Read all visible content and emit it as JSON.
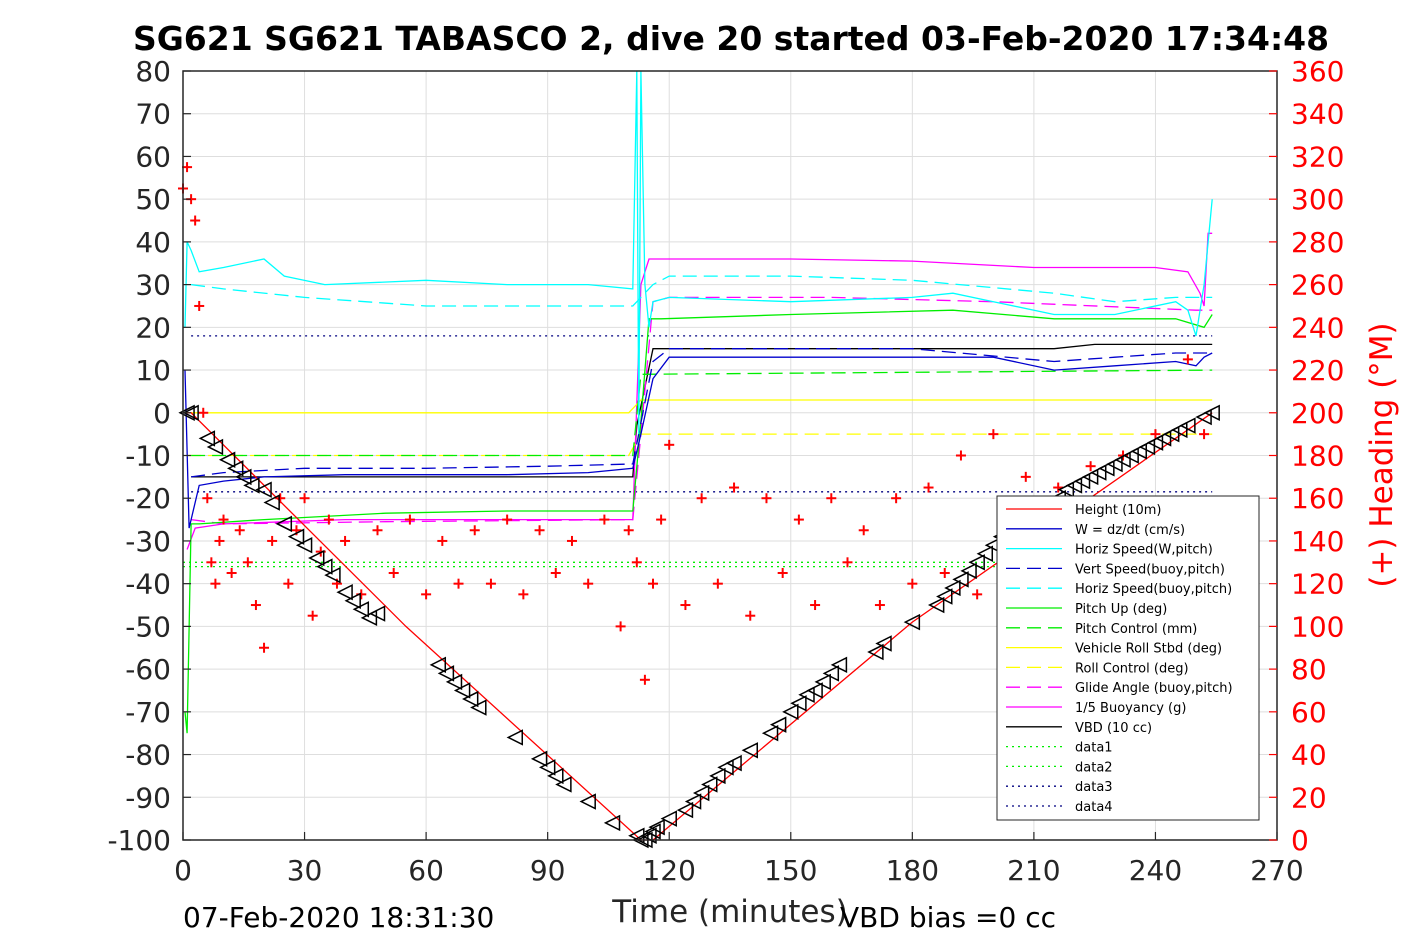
{
  "chart_data": {
    "type": "line",
    "title": "SG621 SG621 TABASCO 2, dive 20 started 03-Feb-2020 17:34:48",
    "xlabel": "Time (minutes)",
    "ylabel": "",
    "y2label": "(+) Heading (°M)",
    "xlim": [
      0,
      270
    ],
    "ylim": [
      -100,
      80
    ],
    "y2lim": [
      0,
      360
    ],
    "xticks": [
      "0",
      "30",
      "60",
      "90",
      "120",
      "150",
      "180",
      "210",
      "240",
      "270"
    ],
    "yticks": [
      "80",
      "70",
      "60",
      "50",
      "40",
      "30",
      "20",
      "10",
      "0",
      "-10",
      "-20",
      "-30",
      "-40",
      "-50",
      "-60",
      "-70",
      "-80",
      "-90",
      "-100"
    ],
    "y2ticks": [
      "360",
      "340",
      "320",
      "300",
      "280",
      "260",
      "240",
      "220",
      "200",
      "180",
      "160",
      "140",
      "120",
      "100",
      "80",
      "60",
      "40",
      "20",
      "0"
    ],
    "grid": true,
    "legend_position": "lower-right",
    "footer_left": "07-Feb-2020 18:31:30",
    "footer_right": "VBD bias =0 cc",
    "colors": {
      "height": "#ff0000",
      "w": "#0000cd",
      "cyan": "#00ffff",
      "green": "#00ee00",
      "yellow": "#ffff00",
      "magenta": "#ff00ff",
      "black": "#000000",
      "heading": "#ff0000"
    },
    "series": [
      {
        "name": "Height (10m)",
        "style": "solid",
        "color": "#ff0000",
        "x": [
          0,
          2,
          55,
          113,
          116,
          180,
          254
        ],
        "y": [
          0,
          0,
          -50,
          -100,
          -100,
          -49,
          0
        ]
      },
      {
        "name": "W = dz/dt (cm/s)",
        "style": "solid",
        "color": "#0000cd",
        "x": [
          0.5,
          1.5,
          4,
          10,
          20,
          40,
          60,
          80,
          100,
          111,
          113,
          116,
          120,
          150,
          180,
          200,
          215,
          230,
          245,
          250,
          252,
          254
        ],
        "y": [
          10,
          -27,
          -17,
          -16,
          -15,
          -14.5,
          -14.5,
          -14.5,
          -14,
          -13,
          -5,
          8,
          13,
          13,
          13,
          13,
          10,
          11,
          12,
          11,
          13,
          14
        ]
      },
      {
        "name": "Horiz Speed(W,pitch)",
        "style": "solid",
        "color": "#00ffff",
        "x": [
          0.5,
          1,
          2,
          4,
          10,
          20,
          25,
          35,
          60,
          80,
          100,
          111,
          112,
          112.5,
          113,
          114,
          115,
          116,
          120,
          150,
          180,
          190,
          200,
          215,
          230,
          245,
          248,
          250,
          252,
          254
        ],
        "y": [
          20,
          40,
          38,
          33,
          34,
          36,
          32,
          30,
          31,
          30,
          30,
          29,
          80,
          -5,
          80,
          30,
          20,
          26,
          27,
          26,
          27,
          28,
          26,
          23,
          23,
          26,
          24,
          18,
          30,
          50
        ]
      },
      {
        "name": "Vert Speed(buoy,pitch)",
        "style": "dashed",
        "color": "#0000cd",
        "x": [
          2,
          10,
          30,
          60,
          90,
          111,
          116,
          120,
          150,
          180,
          215,
          230,
          245,
          254
        ],
        "y": [
          -15,
          -14,
          -13,
          -13,
          -12.5,
          -12,
          12,
          15,
          15,
          15,
          12,
          13,
          14,
          14
        ]
      },
      {
        "name": "Horiz Speed(buoy,pitch)",
        "style": "dashed",
        "color": "#00ffff",
        "x": [
          2,
          10,
          30,
          60,
          90,
          111,
          116,
          120,
          150,
          180,
          215,
          230,
          245,
          254
        ],
        "y": [
          30,
          29,
          27,
          25,
          25,
          25,
          30,
          32,
          32,
          31,
          28,
          26,
          27,
          27
        ]
      },
      {
        "name": "Pitch Up (deg)",
        "style": "solid",
        "color": "#00ee00",
        "x": [
          0.5,
          1,
          2,
          4,
          20,
          50,
          80,
          111,
          113,
          115,
          118,
          150,
          190,
          215,
          245,
          252,
          254
        ],
        "y": [
          -70,
          -75,
          -26,
          -26,
          -25,
          -23.5,
          -23,
          -23,
          -2,
          22,
          22,
          23,
          24,
          22,
          22,
          20,
          23
        ]
      },
      {
        "name": "Pitch Control (mm)",
        "style": "dashed",
        "color": "#00ee00",
        "x": [
          2,
          111,
          113,
          254
        ],
        "y": [
          -10,
          -10,
          9,
          10
        ]
      },
      {
        "name": "Vehicle Roll Stbd (deg)",
        "style": "solid",
        "color": "#ffff00",
        "x": [
          1,
          110,
          113,
          254
        ],
        "y": [
          0,
          0,
          3,
          3
        ]
      },
      {
        "name": "Roll Control (deg)",
        "style": "dashed",
        "color": "#ffff00",
        "x": [
          1,
          110,
          113,
          254
        ],
        "y": [
          -10,
          -10,
          -5,
          -5
        ]
      },
      {
        "name": "Glide Angle (buoy,pitch)",
        "style": "dashed",
        "color": "#ff00ff",
        "x": [
          2,
          10,
          50,
          111,
          113,
          116,
          120,
          160,
          200,
          250,
          254
        ],
        "y": [
          -25,
          -26,
          -25.5,
          -25,
          -5,
          26,
          27,
          27,
          26,
          24,
          24
        ]
      },
      {
        "name": "1/5 Buoyancy (g)",
        "style": "solid",
        "color": "#ff00ff",
        "x": [
          1,
          3,
          10,
          40,
          80,
          111,
          113,
          115,
          150,
          180,
          210,
          240,
          248,
          251,
          252,
          253,
          254
        ],
        "y": [
          -32,
          -27,
          -26,
          -25,
          -25,
          -25,
          30,
          36,
          36,
          35.5,
          34,
          34,
          33,
          28,
          25,
          42,
          42
        ]
      },
      {
        "name": "VBD (10 cc)",
        "style": "solid",
        "color": "#000000",
        "x": [
          2,
          111,
          112,
          116,
          150,
          180,
          215,
          225,
          254
        ],
        "y": [
          -15,
          -15,
          -3,
          15,
          15,
          15,
          15,
          16,
          16
        ]
      },
      {
        "name": "data1",
        "style": "dotted",
        "color": "#00ee00",
        "x": [
          0,
          254
        ],
        "y": [
          -35,
          -35
        ]
      },
      {
        "name": "data2",
        "style": "dotted",
        "color": "#00ee00",
        "x": [
          0,
          254
        ],
        "y": [
          -36,
          -36
        ]
      },
      {
        "name": "data3",
        "style": "dotted",
        "color": "#000080",
        "x": [
          2,
          254
        ],
        "y": [
          18,
          18
        ]
      },
      {
        "name": "data4",
        "style": "dotted",
        "color": "#000080",
        "x": [
          2,
          254
        ],
        "y": [
          -18.5,
          -18.5
        ]
      }
    ],
    "heading_points": {
      "marker": "+",
      "color": "#ff0000",
      "axis": "right",
      "x": [
        0,
        1,
        2,
        3,
        4,
        5,
        6,
        7,
        8,
        9,
        10,
        12,
        14,
        16,
        18,
        20,
        22,
        24,
        26,
        28,
        30,
        32,
        34,
        36,
        38,
        40,
        44,
        48,
        52,
        56,
        60,
        64,
        68,
        72,
        76,
        80,
        84,
        88,
        92,
        96,
        100,
        104,
        108,
        110,
        112,
        114,
        116,
        118,
        120,
        124,
        128,
        132,
        136,
        140,
        144,
        148,
        152,
        156,
        160,
        164,
        168,
        172,
        176,
        180,
        184,
        188,
        192,
        196,
        200,
        204,
        208,
        212,
        216,
        220,
        224,
        228,
        232,
        236,
        240,
        244,
        248,
        250,
        252
      ],
      "y": [
        305,
        315,
        300,
        290,
        250,
        200,
        160,
        130,
        120,
        140,
        150,
        125,
        145,
        130,
        110,
        90,
        140,
        160,
        120,
        145,
        160,
        105,
        135,
        150,
        120,
        140,
        115,
        145,
        125,
        150,
        115,
        140,
        120,
        145,
        120,
        150,
        115,
        145,
        125,
        140,
        120,
        150,
        100,
        145,
        130,
        75,
        120,
        150,
        185,
        110,
        160,
        120,
        165,
        105,
        160,
        125,
        150,
        110,
        160,
        130,
        145,
        110,
        160,
        120,
        165,
        125,
        180,
        115,
        190,
        100,
        170,
        125,
        165,
        110,
        175,
        120,
        180,
        115,
        190,
        110,
        225,
        110,
        190
      ]
    },
    "dive_markers": {
      "marker": "triangles",
      "color": "#000000",
      "x": [
        1,
        2,
        6,
        8,
        11,
        13,
        15,
        17,
        20,
        22,
        25,
        28,
        30,
        33,
        35,
        37,
        40,
        42,
        44,
        46,
        48,
        63,
        65,
        67,
        69,
        71,
        73,
        82,
        88,
        90,
        92,
        94,
        100,
        106,
        112,
        113,
        114,
        115,
        116,
        117,
        120,
        124,
        126,
        128,
        130,
        132,
        134,
        136,
        140,
        145,
        147,
        150,
        152,
        154,
        156,
        158,
        160,
        162,
        171,
        173,
        180,
        186,
        188,
        190,
        192,
        194,
        196,
        198,
        200,
        202,
        214,
        216,
        218,
        220,
        222,
        224,
        226,
        228,
        230,
        232,
        234,
        236,
        238,
        240,
        242,
        244,
        246,
        248,
        252,
        254
      ],
      "y": [
        0,
        0,
        -6,
        -8,
        -11,
        -13,
        -15,
        -17,
        -18,
        -21,
        -26,
        -29,
        -31,
        -34,
        -36,
        -38,
        -42,
        -44,
        -46,
        -48,
        -47,
        -59,
        -61,
        -63,
        -65,
        -67,
        -69,
        -76,
        -81,
        -83,
        -85,
        -87,
        -91,
        -96,
        -99,
        -100,
        -100,
        -99,
        -98,
        -97,
        -95,
        -93,
        -91,
        -89,
        -87,
        -85,
        -83,
        -82,
        -79,
        -75,
        -73,
        -70,
        -68,
        -66,
        -65,
        -63,
        -61,
        -59,
        -56,
        -54,
        -49,
        -45,
        -43,
        -41,
        -39,
        -37,
        -35,
        -33,
        -31,
        -29,
        -21,
        -20,
        -18,
        -17,
        -16,
        -15,
        -14,
        -13,
        -12,
        -11,
        -10,
        -9,
        -8,
        -7,
        -6,
        -5,
        -4,
        -3,
        -1,
        0
      ]
    }
  }
}
